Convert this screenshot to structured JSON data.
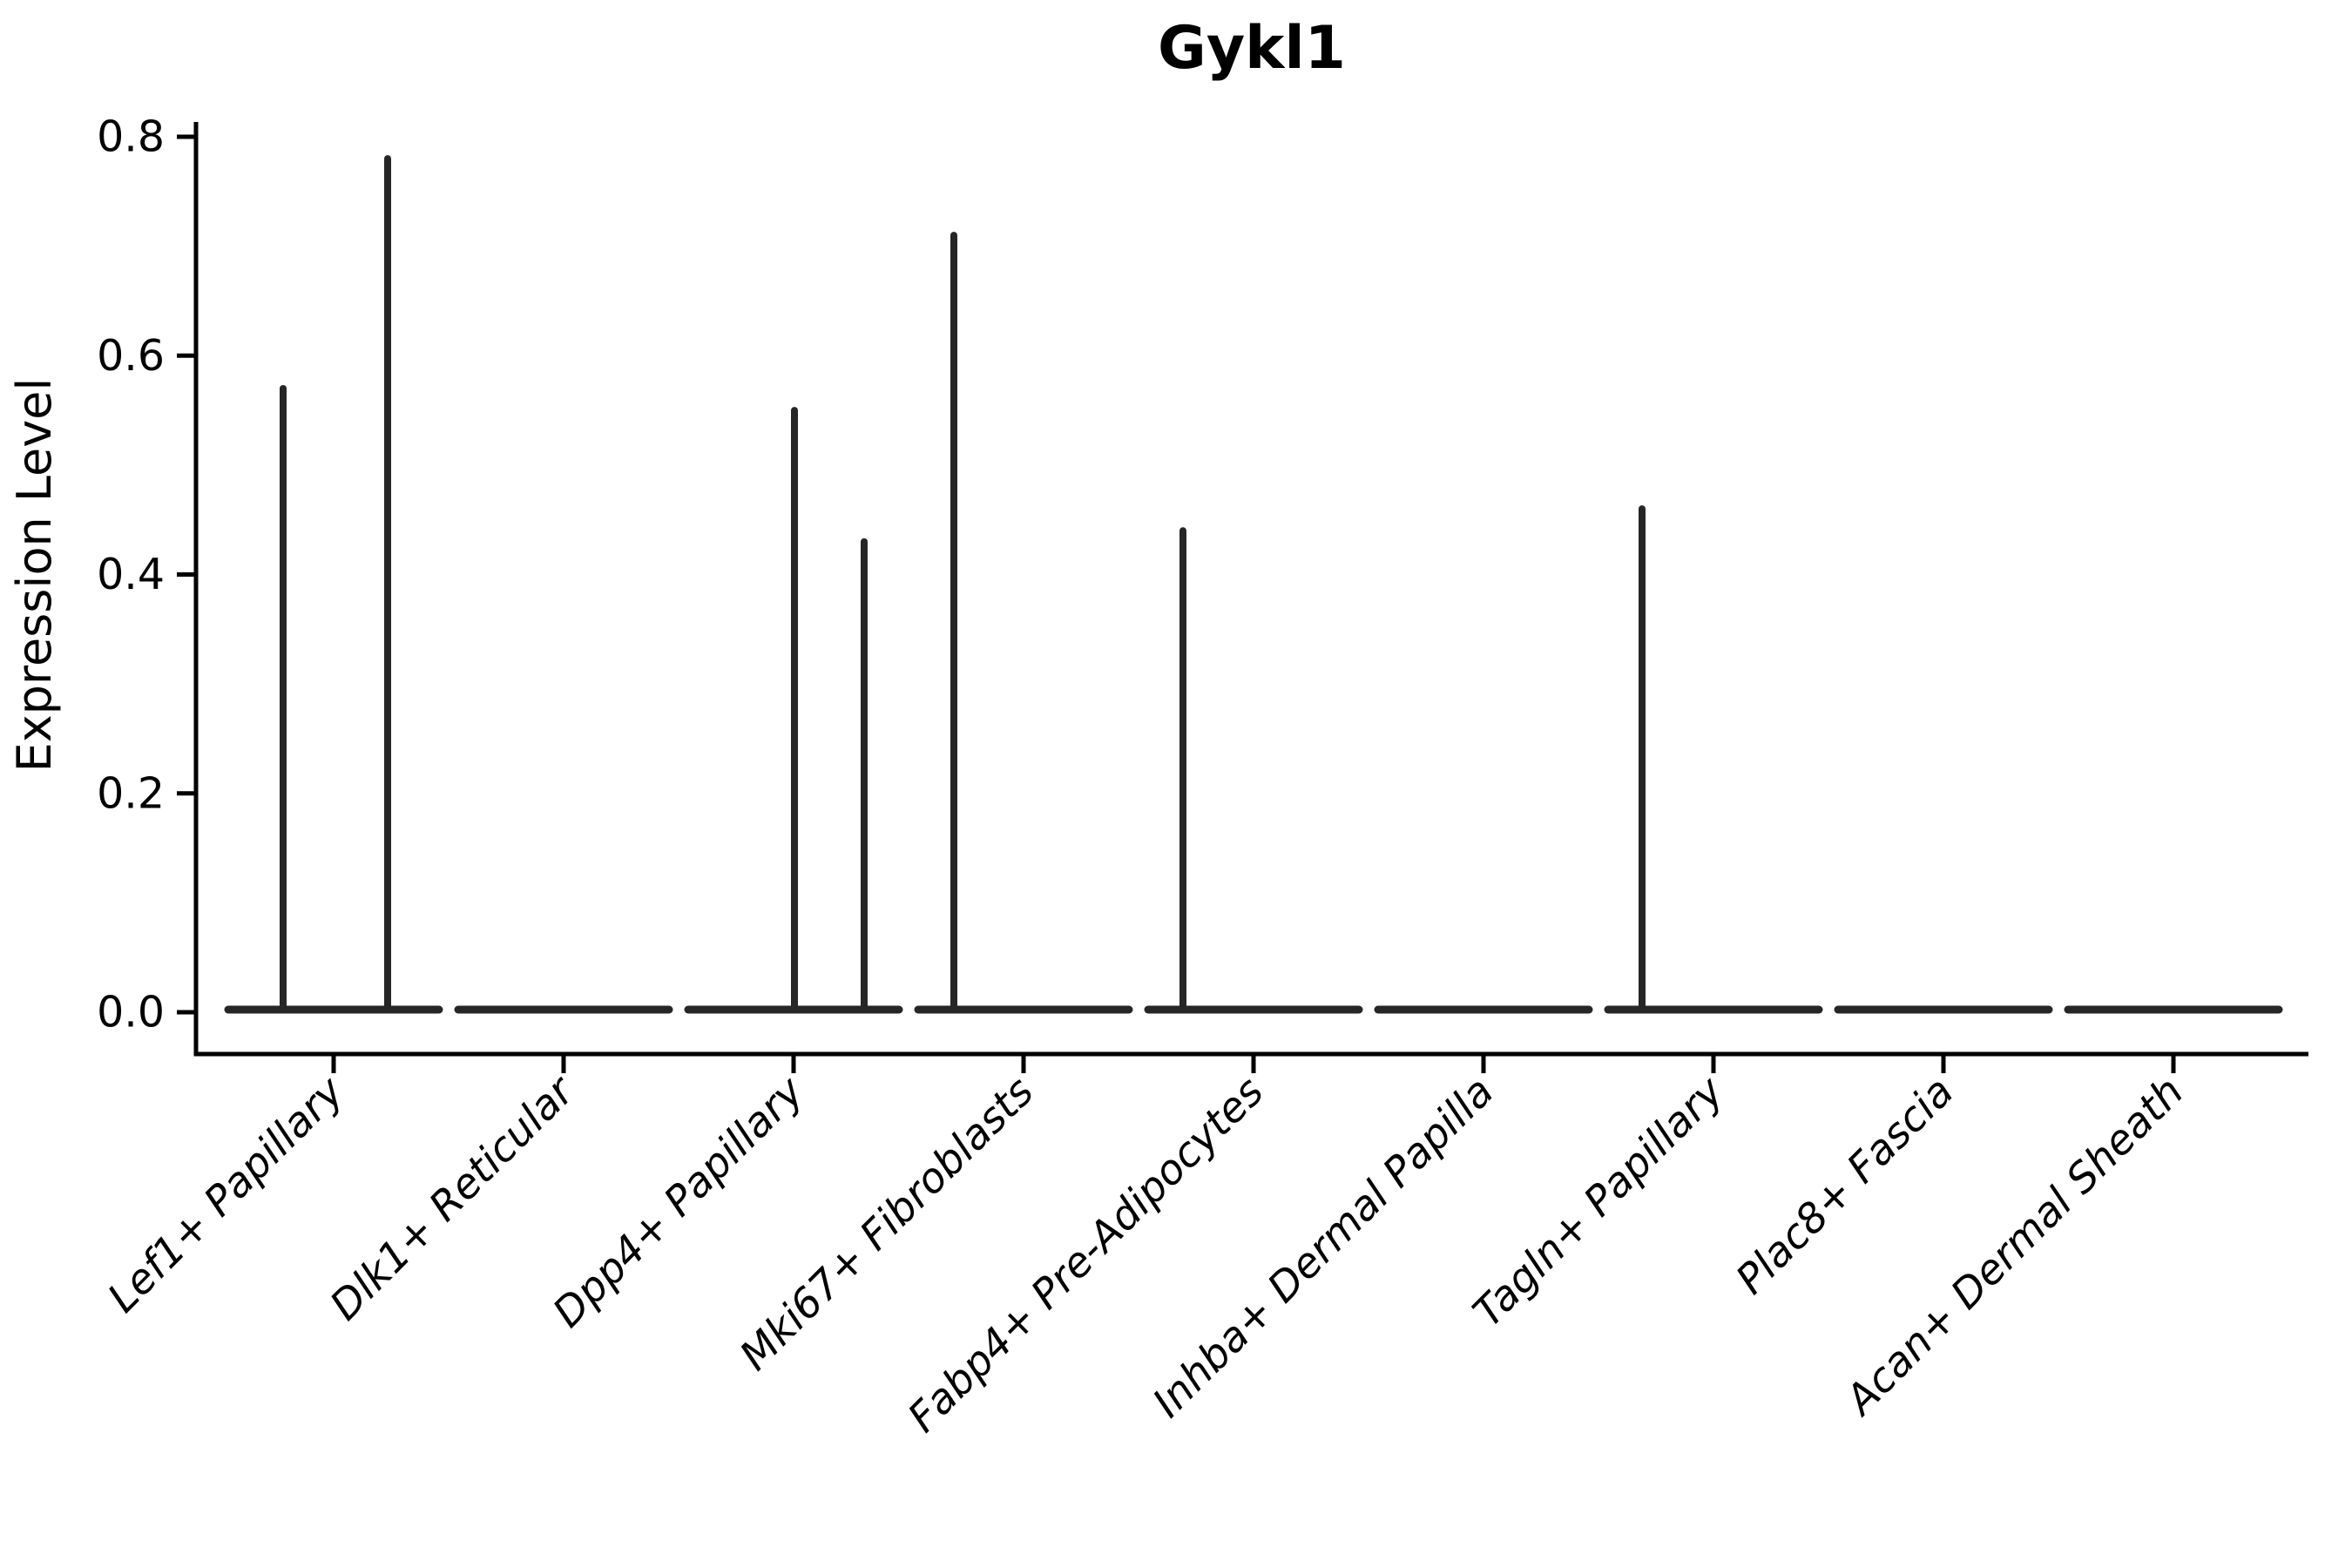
{
  "title": "Gykl1",
  "colors": {
    "background": "#ffffff",
    "axis": "#000000",
    "text": "#000000",
    "violin_stroke": "#262626"
  },
  "chart_data": {
    "type": "violin",
    "title": "Gykl1",
    "xlabel": "",
    "ylabel": "Expression Level",
    "ylim": [
      0.0,
      0.8
    ],
    "yticks": [
      0.0,
      0.2,
      0.4,
      0.6,
      0.8
    ],
    "ytick_labels": [
      "0.0",
      "0.2",
      "0.4",
      "0.6",
      "0.8"
    ],
    "grid": false,
    "legend": "none",
    "x_tick_rotation_deg": 45,
    "categories": [
      "Lef1+ Papillary",
      "Dlk1+ Reticular",
      "Dpp4+ Papillary",
      "Mki67+ Fibroblasts",
      "Fabp4+ Pre-Adipocytes",
      "Inhba+ Dermal Papilla",
      "Tagln+ Papillary",
      "Plac8+ Fascia",
      "Acan+ Dermal Sheath"
    ],
    "series": [
      {
        "name": "Lef1+ Papillary",
        "baseline_value": 0.0,
        "max_expression": 0.78,
        "spikes": [
          {
            "x_offset": -58,
            "value": 0.57
          },
          {
            "x_offset": 62,
            "value": 0.78
          }
        ]
      },
      {
        "name": "Dlk1+ Reticular",
        "baseline_value": 0.0,
        "max_expression": 0.0,
        "spikes": []
      },
      {
        "name": "Dpp4+ Papillary",
        "baseline_value": 0.0,
        "max_expression": 0.55,
        "spikes": [
          {
            "x_offset": 1,
            "value": 0.55
          },
          {
            "x_offset": 81,
            "value": 0.43
          }
        ]
      },
      {
        "name": "Mki67+ Fibroblasts",
        "baseline_value": 0.0,
        "max_expression": 0.71,
        "spikes": [
          {
            "x_offset": -80,
            "value": 0.71
          }
        ]
      },
      {
        "name": "Fabp4+ Pre-Adipocytes",
        "baseline_value": 0.0,
        "max_expression": 0.44,
        "spikes": [
          {
            "x_offset": -81,
            "value": 0.44
          }
        ]
      },
      {
        "name": "Inhba+ Dermal Papilla",
        "baseline_value": 0.0,
        "max_expression": 0.0,
        "spikes": []
      },
      {
        "name": "Tagln+ Papillary",
        "baseline_value": 0.0,
        "max_expression": 0.46,
        "spikes": [
          {
            "x_offset": -82,
            "value": 0.46
          }
        ]
      },
      {
        "name": "Plac8+ Fascia",
        "baseline_value": 0.0,
        "max_expression": 0.0,
        "spikes": []
      },
      {
        "name": "Acan+ Dermal Sheath",
        "baseline_value": 0.0,
        "max_expression": 0.0,
        "spikes": []
      }
    ]
  }
}
